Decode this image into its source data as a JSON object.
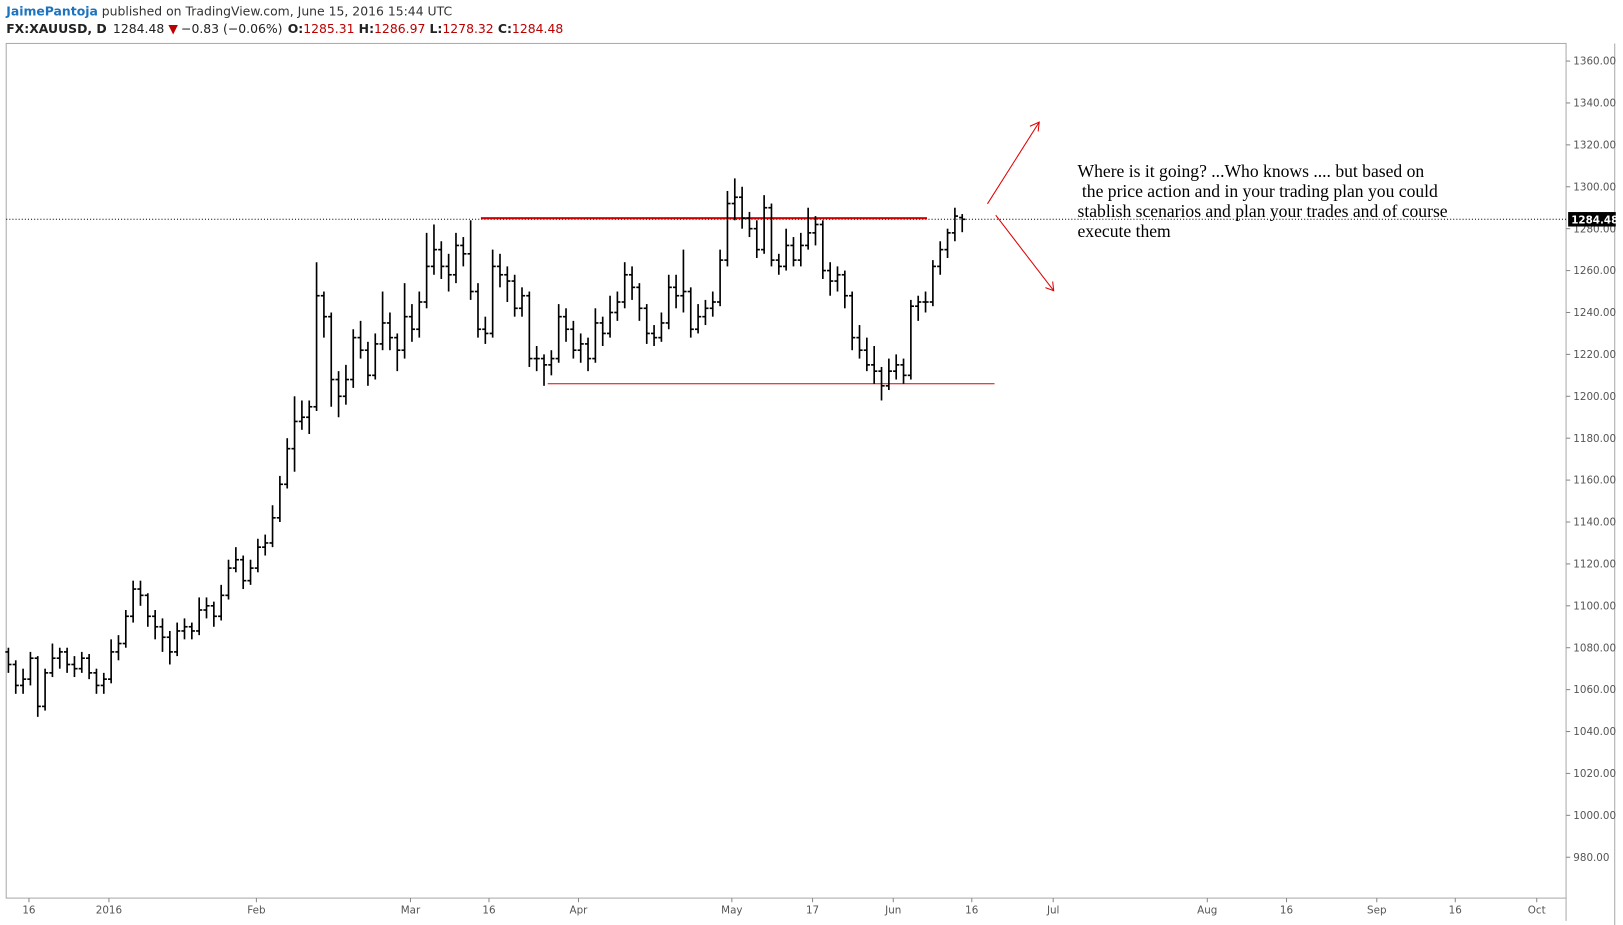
{
  "header": {
    "author": "JaimePantoja",
    "published": " published on TradingView.com, June 15, 2016 15:44 UTC",
    "symbol": "FX:XAUUSD, D",
    "change": "−0.83 (−0.06%)",
    "open_label": "O:",
    "high_label": "H:",
    "low_label": "L:",
    "close_label": "C:"
  },
  "chart_data": {
    "type": "ohlc",
    "color": "#000000",
    "level_color": "#e00000",
    "xlim": [
      -0.3,
      212.3
    ],
    "ylim": [
      960.5,
      1368.4
    ],
    "xticks": [
      {
        "value": 2.8,
        "label": "16"
      },
      {
        "value": 13.7,
        "label": "2016"
      },
      {
        "value": 33.8,
        "label": "Feb"
      },
      {
        "value": 54.8,
        "label": "Mar"
      },
      {
        "value": 65.5,
        "label": "16"
      },
      {
        "value": 77.7,
        "label": "Apr"
      },
      {
        "value": 98.6,
        "label": "May"
      },
      {
        "value": 109.6,
        "label": "17"
      },
      {
        "value": 120.6,
        "label": "Jun"
      },
      {
        "value": 131.3,
        "label": "16"
      },
      {
        "value": 142.4,
        "label": "Jul"
      },
      {
        "value": 163.4,
        "label": "Aug"
      },
      {
        "value": 174.2,
        "label": "16"
      },
      {
        "value": 186.5,
        "label": "Sep"
      },
      {
        "value": 197.2,
        "label": "16"
      },
      {
        "value": 208.3,
        "label": "Oct"
      }
    ],
    "yticks": [
      {
        "value": 980,
        "label": "980.00"
      },
      {
        "value": 1000,
        "label": "1000.00"
      },
      {
        "value": 1020,
        "label": "1020.00"
      },
      {
        "value": 1040,
        "label": "1040.00"
      },
      {
        "value": 1060,
        "label": "1060.00"
      },
      {
        "value": 1080,
        "label": "1080.00"
      },
      {
        "value": 1100,
        "label": "1100.00"
      },
      {
        "value": 1120,
        "label": "1120.00"
      },
      {
        "value": 1140,
        "label": "1140.00"
      },
      {
        "value": 1160,
        "label": "1160.00"
      },
      {
        "value": 1180,
        "label": "1180.00"
      },
      {
        "value": 1200,
        "label": "1200.00"
      },
      {
        "value": 1220,
        "label": "1220.00"
      },
      {
        "value": 1240,
        "label": "1240.00"
      },
      {
        "value": 1260,
        "label": "1260.00"
      },
      {
        "value": 1280,
        "label": "1280.00"
      },
      {
        "value": 1300,
        "label": "1300.00"
      },
      {
        "value": 1320,
        "label": "1320.00"
      },
      {
        "value": 1340,
        "label": "1340.00"
      },
      {
        "value": 1360,
        "label": "1360.00"
      }
    ],
    "open": [
      1078,
      1072,
      1062,
      1065,
      1075,
      1052,
      1068,
      1075,
      1078,
      1072,
      1070,
      1075,
      1068,
      1062,
      1065,
      1078,
      1082,
      1095,
      1108,
      1105,
      1095,
      1090,
      1085,
      1078,
      1088,
      1090,
      1088,
      1098,
      1100,
      1095,
      1105,
      1118,
      1122,
      1112,
      1118,
      1128,
      1130,
      1142,
      1158,
      1175,
      1188,
      1190,
      1195,
      1248,
      1238,
      1208,
      1200,
      1208,
      1228,
      1222,
      1210,
      1225,
      1235,
      1228,
      1222,
      1238,
      1232,
      1245,
      1262,
      1270,
      1262,
      1258,
      1272,
      1268,
      1250,
      1232,
      1230,
      1262,
      1258,
      1255,
      1242,
      1248,
      1218,
      1218,
      1215,
      1218,
      1238,
      1232,
      1222,
      1225,
      1218,
      1235,
      1230,
      1240,
      1245,
      1258,
      1252,
      1242,
      1230,
      1228,
      1235,
      1252,
      1248,
      1250,
      1232,
      1238,
      1242,
      1245,
      1265,
      1292,
      1295,
      1285,
      1280,
      1270,
      1290,
      1265,
      1262,
      1272,
      1265,
      1272,
      1278,
      1282,
      1260,
      1255,
      1258,
      1248,
      1228,
      1222,
      1215,
      1212,
      1205,
      1212,
      1215,
      1210,
      1243,
      1245,
      1245,
      1262,
      1270,
      1278,
      1285.31
    ],
    "high": [
      1080,
      1074,
      1070,
      1078,
      1076,
      1070,
      1082,
      1080,
      1080,
      1076,
      1078,
      1077,
      1070,
      1068,
      1084,
      1086,
      1098,
      1112,
      1112,
      1106,
      1098,
      1094,
      1088,
      1092,
      1094,
      1092,
      1104,
      1104,
      1102,
      1110,
      1122,
      1128,
      1124,
      1122,
      1132,
      1134,
      1148,
      1162,
      1180,
      1200,
      1198,
      1198,
      1264,
      1250,
      1240,
      1212,
      1215,
      1232,
      1236,
      1226,
      1230,
      1250,
      1240,
      1230,
      1254,
      1244,
      1250,
      1278,
      1282,
      1274,
      1268,
      1278,
      1276,
      1284,
      1254,
      1238,
      1270,
      1268,
      1262,
      1258,
      1252,
      1250,
      1224,
      1220,
      1222,
      1244,
      1242,
      1236,
      1230,
      1228,
      1242,
      1238,
      1248,
      1250,
      1264,
      1262,
      1254,
      1244,
      1234,
      1240,
      1258,
      1258,
      1270,
      1252,
      1244,
      1246,
      1250,
      1270,
      1298,
      1304,
      1300,
      1288,
      1284,
      1296,
      1292,
      1268,
      1280,
      1276,
      1278,
      1290,
      1286,
      1284,
      1264,
      1262,
      1260,
      1250,
      1234,
      1228,
      1224,
      1214,
      1218,
      1220,
      1218,
      1246,
      1248,
      1250,
      1265,
      1274,
      1280,
      1290,
      1286.97
    ],
    "low": [
      1068,
      1058,
      1058,
      1062,
      1047,
      1050,
      1066,
      1070,
      1068,
      1066,
      1068,
      1065,
      1058,
      1058,
      1063,
      1074,
      1080,
      1092,
      1100,
      1090,
      1084,
      1078,
      1072,
      1076,
      1084,
      1084,
      1086,
      1094,
      1090,
      1093,
      1103,
      1116,
      1108,
      1110,
      1116,
      1124,
      1128,
      1140,
      1156,
      1164,
      1184,
      1182,
      1193,
      1228,
      1195,
      1190,
      1196,
      1204,
      1218,
      1205,
      1208,
      1222,
      1222,
      1212,
      1218,
      1226,
      1228,
      1242,
      1258,
      1256,
      1250,
      1254,
      1262,
      1246,
      1228,
      1225,
      1228,
      1252,
      1245,
      1238,
      1238,
      1214,
      1212,
      1205,
      1210,
      1216,
      1226,
      1218,
      1216,
      1212,
      1216,
      1224,
      1228,
      1236,
      1242,
      1246,
      1236,
      1225,
      1224,
      1226,
      1232,
      1242,
      1240,
      1228,
      1230,
      1234,
      1238,
      1243,
      1262,
      1284,
      1280,
      1276,
      1266,
      1268,
      1262,
      1258,
      1260,
      1262,
      1262,
      1270,
      1272,
      1256,
      1248,
      1250,
      1242,
      1222,
      1218,
      1212,
      1206,
      1198,
      1203,
      1208,
      1206,
      1208,
      1236,
      1240,
      1243,
      1258,
      1266,
      1274,
      1278.32
    ],
    "close": [
      1072,
      1062,
      1065,
      1075,
      1052,
      1068,
      1075,
      1078,
      1072,
      1070,
      1075,
      1068,
      1062,
      1065,
      1078,
      1082,
      1095,
      1108,
      1105,
      1095,
      1090,
      1085,
      1078,
      1088,
      1090,
      1088,
      1098,
      1100,
      1095,
      1105,
      1118,
      1122,
      1112,
      1118,
      1128,
      1130,
      1142,
      1158,
      1175,
      1188,
      1190,
      1195,
      1248,
      1238,
      1208,
      1200,
      1208,
      1228,
      1222,
      1210,
      1225,
      1235,
      1228,
      1222,
      1238,
      1232,
      1245,
      1262,
      1270,
      1262,
      1258,
      1272,
      1268,
      1250,
      1232,
      1230,
      1262,
      1258,
      1255,
      1242,
      1248,
      1218,
      1218,
      1215,
      1218,
      1238,
      1232,
      1222,
      1225,
      1218,
      1235,
      1230,
      1240,
      1245,
      1258,
      1252,
      1242,
      1230,
      1228,
      1235,
      1252,
      1248,
      1250,
      1232,
      1238,
      1242,
      1245,
      1265,
      1292,
      1295,
      1285,
      1280,
      1270,
      1290,
      1265,
      1262,
      1272,
      1265,
      1272,
      1278,
      1282,
      1260,
      1255,
      1258,
      1248,
      1228,
      1222,
      1215,
      1212,
      1205,
      1212,
      1215,
      1210,
      1243,
      1245,
      1245,
      1262,
      1270,
      1278,
      1286,
      1284.48
    ],
    "levels": [
      {
        "value": 1285,
        "from": 64.4,
        "to": 125.2
      },
      {
        "value": 1206,
        "from": 73.5,
        "to": 134.4
      }
    ],
    "annotation": [
      "Where is it going? ...Who knows .... but based on",
      " the price action and in your trading plan you could",
      "stablish scenarios and plan your trades and of course",
      "execute them"
    ]
  }
}
